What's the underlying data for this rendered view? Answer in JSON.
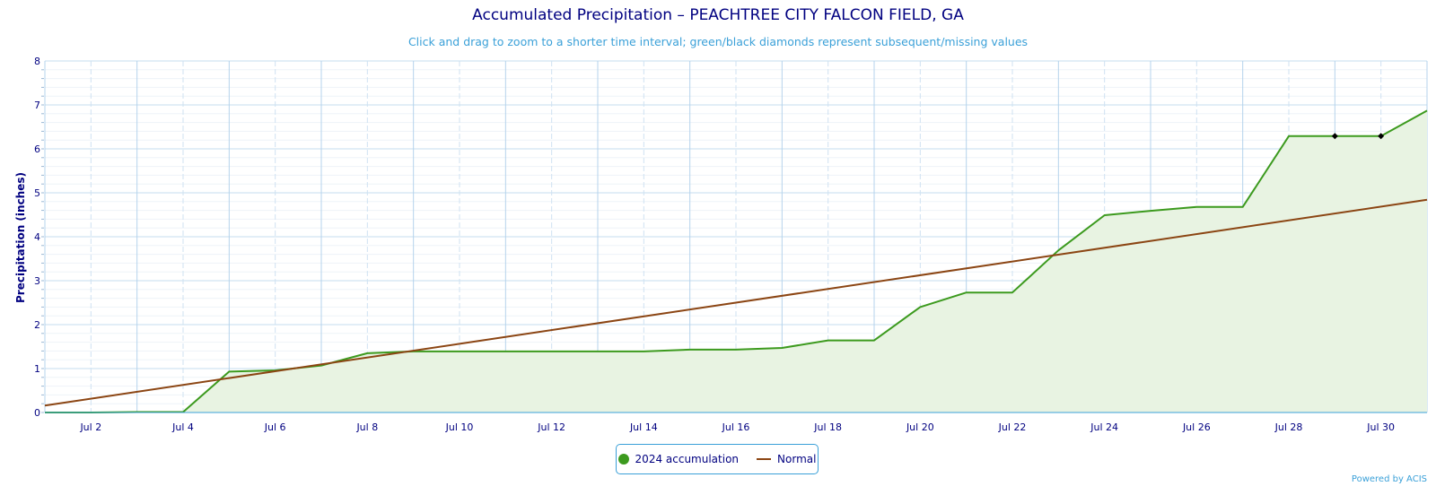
{
  "chart_data": {
    "type": "area",
    "title": "Accumulated Precipitation – PEACHTREE CITY FALCON FIELD, GA",
    "subtitle": "Click and drag to zoom to a shorter time interval; green/black diamonds represent subsequent/missing values",
    "ylabel": "Precipitation (inches)",
    "xlabel": "",
    "ylim": [
      0,
      8
    ],
    "yticks": [
      "0",
      "1",
      "2",
      "3",
      "4",
      "5",
      "6",
      "7",
      "8"
    ],
    "x_range_days": [
      1,
      31
    ],
    "xticks": [
      "Jul 2",
      "Jul 4",
      "Jul 6",
      "Jul 8",
      "Jul 10",
      "Jul 12",
      "Jul 14",
      "Jul 16",
      "Jul 18",
      "Jul 20",
      "Jul 22",
      "Jul 24",
      "Jul 26",
      "Jul 28",
      "Jul 30"
    ],
    "grid": true,
    "legend_position": "bottom-center",
    "series": [
      {
        "name": "2024 accumulation",
        "color": "#3c9a1e",
        "fill": "#e8f3e2",
        "x": [
          1,
          2,
          3,
          4,
          5,
          6,
          7,
          8,
          9,
          10,
          11,
          12,
          13,
          14,
          15,
          16,
          17,
          18,
          19,
          20,
          21,
          22,
          23,
          24,
          25,
          26,
          27,
          28,
          29,
          30,
          31
        ],
        "y": [
          0.0,
          0.0,
          0.01,
          0.01,
          0.93,
          0.96,
          1.07,
          1.35,
          1.39,
          1.39,
          1.39,
          1.39,
          1.39,
          1.39,
          1.43,
          1.43,
          1.47,
          1.64,
          1.64,
          2.4,
          2.73,
          2.73,
          3.69,
          4.49,
          4.59,
          4.68,
          4.68,
          6.29,
          6.29,
          6.29,
          6.87
        ]
      },
      {
        "name": "Normal",
        "color": "#8b4513",
        "x": [
          1,
          31
        ],
        "y": [
          0.16,
          4.84
        ]
      }
    ],
    "missing_markers": {
      "color": "#000000",
      "x": [
        29,
        30
      ],
      "y": [
        6.29,
        6.29
      ]
    }
  },
  "credits": "Powered by ACIS"
}
